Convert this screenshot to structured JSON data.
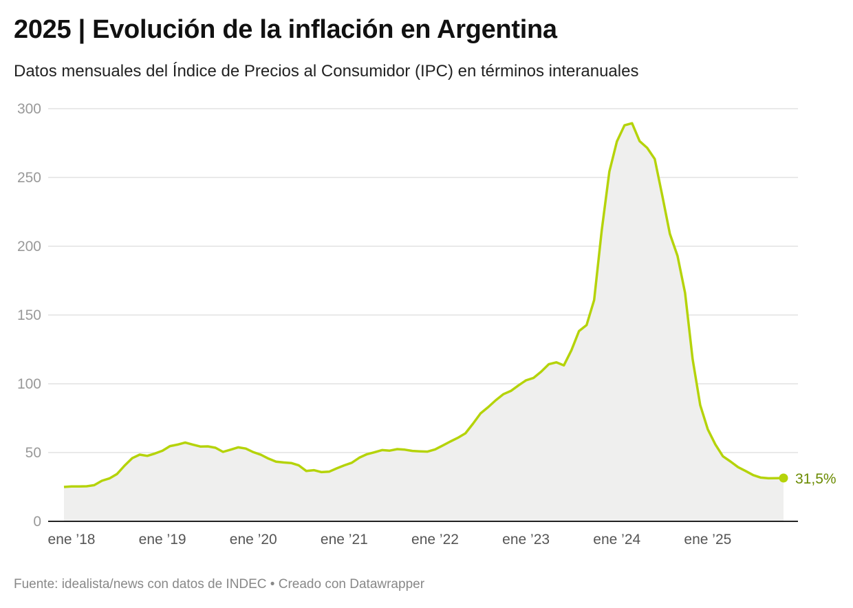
{
  "title": "2025 | Evolución de la inflación en Argentina",
  "subtitle": "Datos mensuales del Índice de Precios al Consumidor (IPC) en términos interanuales",
  "footer": "Fuente: idealista/news con datos de INDEC • Creado con Datawrapper",
  "chart_data": {
    "type": "area",
    "title": "2025 | Evolución de la inflación en Argentina",
    "xlabel": "",
    "ylabel": "",
    "x_start": "2018-01",
    "x_end": "2025-12",
    "frequency": "monthly",
    "ylim": [
      0,
      300
    ],
    "yticks": [
      0,
      50,
      100,
      150,
      200,
      250,
      300
    ],
    "xtick_labels": [
      "ene ’18",
      "ene ’19",
      "ene ’20",
      "ene ’21",
      "ene ’22",
      "ene ’23",
      "ene ’24",
      "ene ’25"
    ],
    "grid": true,
    "values": [
      25.0,
      25.4,
      25.4,
      25.5,
      26.3,
      29.5,
      31.2,
      34.4,
      40.5,
      45.9,
      48.5,
      47.6,
      49.3,
      51.3,
      54.7,
      55.8,
      57.3,
      55.8,
      54.4,
      54.5,
      53.5,
      50.5,
      52.1,
      53.8,
      52.9,
      50.3,
      48.4,
      45.6,
      43.4,
      42.8,
      42.4,
      40.7,
      36.6,
      37.2,
      35.8,
      36.1,
      38.5,
      40.7,
      42.6,
      46.3,
      48.8,
      50.2,
      51.8,
      51.4,
      52.5,
      52.1,
      51.2,
      50.9,
      50.7,
      52.3,
      55.1,
      58.0,
      60.7,
      64.0,
      71.0,
      78.5,
      83.0,
      88.0,
      92.4,
      94.8,
      98.8,
      102.5,
      104.3,
      108.8,
      114.2,
      115.6,
      113.4,
      124.4,
      138.3,
      142.7,
      160.9,
      211.4,
      254.2,
      276.2,
      287.9,
      289.4,
      276.4,
      271.5,
      263.4,
      236.7,
      209.0,
      193.0,
      166.0,
      117.8,
      84.5,
      66.9,
      55.9,
      47.3,
      43.5,
      39.4,
      36.6,
      33.6,
      31.8,
      31.3,
      31.4,
      31.5
    ],
    "last_label": "31,5%",
    "colors": {
      "line": "#b5d30a",
      "area": "#efefee",
      "label": "#6a8a00"
    }
  }
}
